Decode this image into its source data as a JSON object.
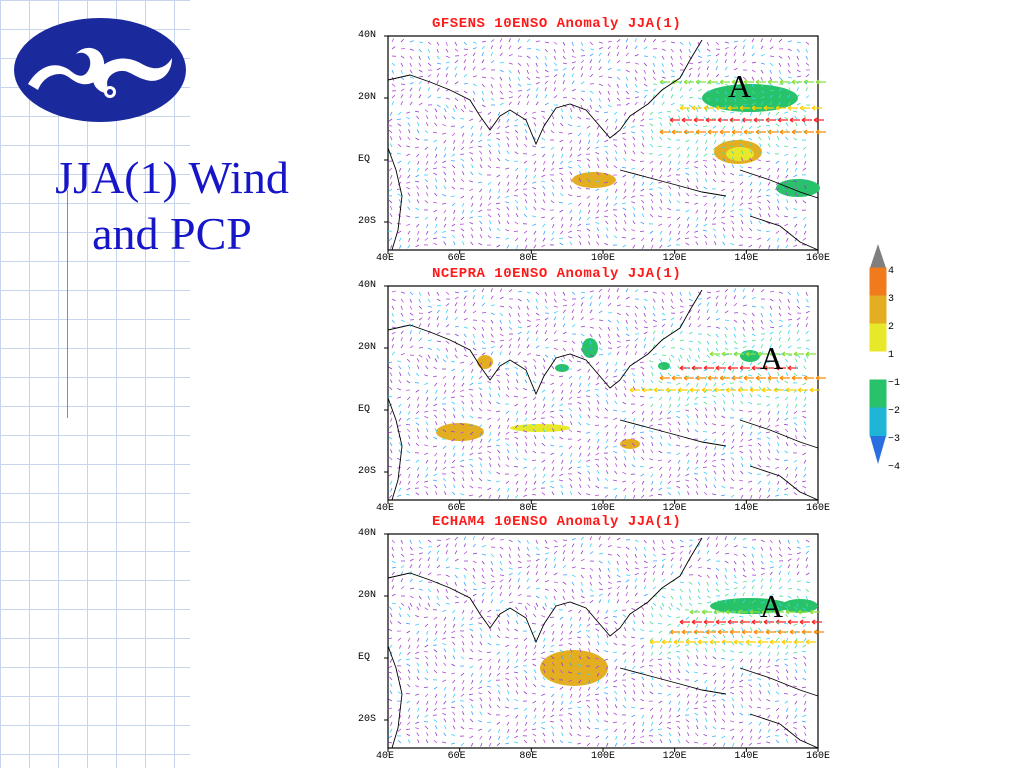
{
  "slide": {
    "title_line1": "JJA(1) Wind",
    "title_line2": "and PCP"
  },
  "axes": {
    "y_labels": [
      "40N",
      "20N",
      "EQ",
      "20S"
    ],
    "x_labels": [
      "40E",
      "60E",
      "80E",
      "100E",
      "120E",
      "140E",
      "160E"
    ]
  },
  "panels": [
    {
      "title": "GFSENS 10ENSO Anomaly JJA(1)",
      "marker": "A"
    },
    {
      "title": "NCEPRA 10ENSO Anomaly JJA(1)",
      "marker": "A"
    },
    {
      "title": "ECHAM4 10ENSO Anomaly JJA(1)",
      "marker": "A"
    }
  ],
  "colorbar": {
    "labels": [
      "4",
      "3",
      "2",
      "1",
      "-1",
      "-2",
      "-3",
      "-4"
    ],
    "colors": [
      "#7f7f7f",
      "#f07b1c",
      "#e3ae22",
      "#e8e82a",
      "#ffffff",
      "#27c26a",
      "#1fb5d6",
      "#2a6fe0"
    ]
  },
  "logo": {
    "icon": "cloud-swirl-logo",
    "fill": "#1a2a9c"
  }
}
